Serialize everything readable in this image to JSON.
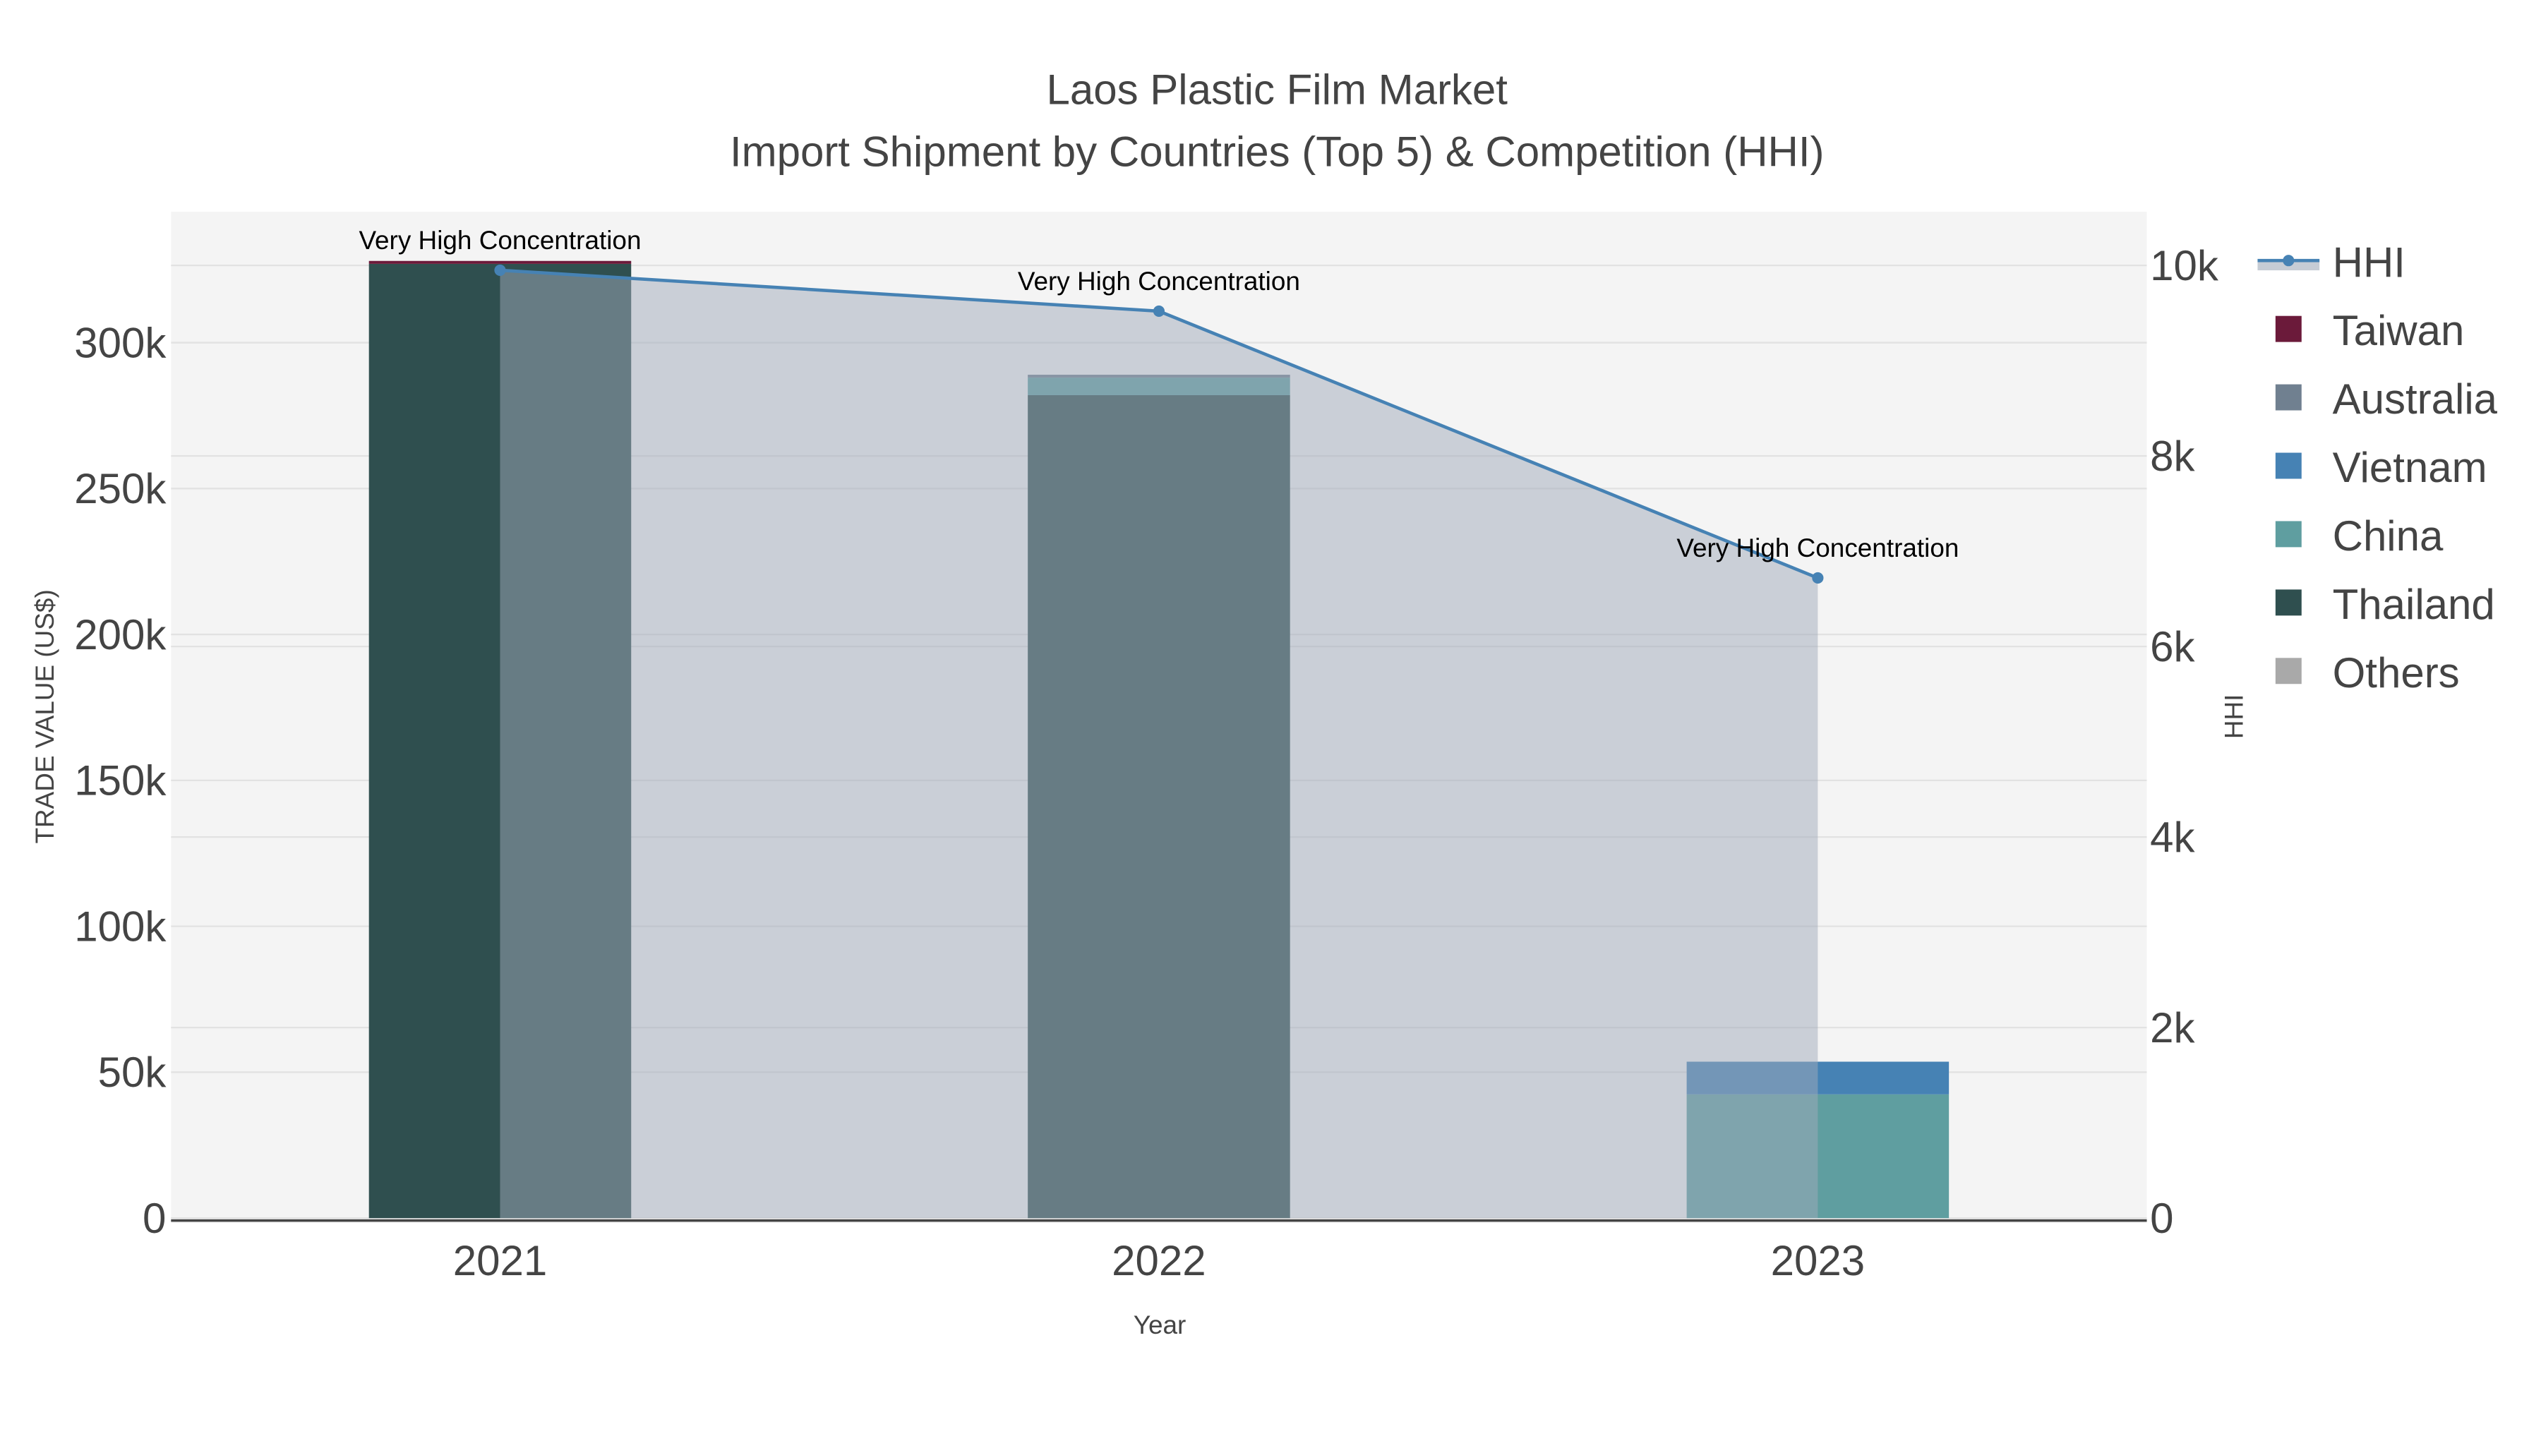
{
  "chart_data": {
    "type": "bar",
    "title": "Laos Plastic Film Market",
    "subtitle": "Import Shipment by Countries (Top 5) & Competition (HHI)",
    "xlabel": "Year",
    "ylabel": "TRADE VALUE (US$)",
    "y2label": "HHI",
    "categories": [
      "2021",
      "2022",
      "2023"
    ],
    "ylim": [
      0,
      345000
    ],
    "y2lim": [
      0,
      10500
    ],
    "yticks": [
      0,
      50000,
      100000,
      150000,
      200000,
      250000,
      300000
    ],
    "ytick_labels": [
      "0",
      "50k",
      "100k",
      "150k",
      "200k",
      "250k",
      "300k"
    ],
    "y2ticks": [
      0,
      2000,
      4000,
      6000,
      8000,
      10000
    ],
    "y2tick_labels": [
      "0",
      "2k",
      "4k",
      "6k",
      "8k",
      "10k"
    ],
    "barmode": "stack",
    "series": [
      {
        "name": "Thailand",
        "color": "#2F4F4F",
        "values": [
          327000,
          282000,
          0
        ]
      },
      {
        "name": "China",
        "color": "#5F9EA0",
        "values": [
          0,
          6000,
          42400
        ]
      },
      {
        "name": "Vietnam",
        "color": "#4682B4",
        "values": [
          0,
          0,
          11200
        ]
      },
      {
        "name": "Australia",
        "color": "#708090",
        "values": [
          0,
          1000,
          0
        ]
      },
      {
        "name": "Taiwan",
        "color": "#6B1A3A",
        "values": [
          1000,
          0,
          0
        ]
      },
      {
        "name": "Others",
        "color": "#A9A9A9",
        "values": [
          0,
          0,
          0
        ]
      }
    ],
    "hhi": {
      "name": "HHI",
      "color": "#4682B4",
      "values": [
        9950,
        9520,
        6720
      ]
    },
    "annotations": [
      "Very High Concentration",
      "Very High Concentration",
      "Very High Concentration"
    ],
    "legend": [
      "HHI",
      "Taiwan",
      "Australia",
      "Vietnam",
      "China",
      "Thailand",
      "Others"
    ],
    "legend_position": "right",
    "grid": true
  }
}
